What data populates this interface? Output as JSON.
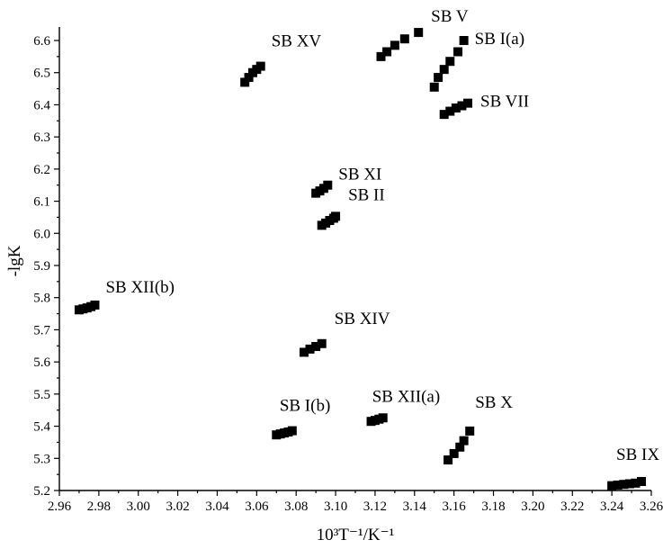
{
  "chart_data": {
    "type": "scatter",
    "title": "",
    "xlabel": "10³T⁻¹/K⁻¹",
    "ylabel": "-lgK",
    "xlim": [
      2.96,
      3.26
    ],
    "ylim": [
      5.2,
      6.65
    ],
    "xticks": [
      "2.96",
      "2.98",
      "3.00",
      "3.02",
      "3.04",
      "3.06",
      "3.08",
      "3.10",
      "3.12",
      "3.14",
      "3.16",
      "3.18",
      "3.20",
      "3.22",
      "3.24",
      "3.26"
    ],
    "yticks": [
      "5.2",
      "5.3",
      "5.4",
      "5.5",
      "5.6",
      "5.7",
      "5.8",
      "5.9",
      "6.0",
      "6.1",
      "6.2",
      "6.3",
      "6.4",
      "6.5",
      "6.6"
    ],
    "grid": false,
    "legend": "none",
    "marker": "square",
    "series": [
      {
        "name": "SB V",
        "x": [
          3.123,
          3.126,
          3.13,
          3.135,
          3.142
        ],
        "y": [
          6.55,
          6.565,
          6.585,
          6.605,
          6.625
        ]
      },
      {
        "name": "SB I(a)",
        "x": [
          3.15,
          3.152,
          3.155,
          3.158,
          3.162,
          3.165
        ],
        "y": [
          6.455,
          6.485,
          6.51,
          6.535,
          6.565,
          6.6
        ]
      },
      {
        "name": "SB XV",
        "x": [
          3.054,
          3.056,
          3.058,
          3.06,
          3.062
        ],
        "y": [
          6.47,
          6.485,
          6.5,
          6.51,
          6.52
        ]
      },
      {
        "name": "SB VII",
        "x": [
          3.155,
          3.158,
          3.161,
          3.164,
          3.167
        ],
        "y": [
          6.37,
          6.38,
          6.39,
          6.397,
          6.405
        ]
      },
      {
        "name": "SB XI",
        "x": [
          3.09,
          3.092,
          3.094,
          3.096
        ],
        "y": [
          6.125,
          6.132,
          6.14,
          6.15
        ]
      },
      {
        "name": "SB II",
        "x": [
          3.093,
          3.095,
          3.097,
          3.099,
          3.1
        ],
        "y": [
          6.025,
          6.032,
          6.04,
          6.047,
          6.053
        ]
      },
      {
        "name": "SB XII(b)",
        "x": [
          2.97,
          2.972,
          2.974,
          2.976,
          2.978
        ],
        "y": [
          5.762,
          5.765,
          5.768,
          5.772,
          5.777
        ]
      },
      {
        "name": "SB XIV",
        "x": [
          3.084,
          3.087,
          3.09,
          3.093
        ],
        "y": [
          5.63,
          5.64,
          5.648,
          5.657
        ]
      },
      {
        "name": "SB I(b)",
        "x": [
          3.07,
          3.072,
          3.074,
          3.076,
          3.078
        ],
        "y": [
          5.373,
          5.376,
          5.379,
          5.382,
          5.386
        ]
      },
      {
        "name": "SB XII(a)",
        "x": [
          3.118,
          3.12,
          3.122,
          3.124
        ],
        "y": [
          5.415,
          5.418,
          5.422,
          5.426
        ]
      },
      {
        "name": "SB X",
        "x": [
          3.157,
          3.16,
          3.163,
          3.165,
          3.168
        ],
        "y": [
          5.295,
          5.315,
          5.335,
          5.355,
          5.385
        ]
      },
      {
        "name": "SB IX",
        "x": [
          3.24,
          3.243,
          3.246,
          3.249,
          3.252,
          3.255
        ],
        "y": [
          5.215,
          5.217,
          5.219,
          5.221,
          5.223,
          5.228
        ]
      }
    ]
  }
}
